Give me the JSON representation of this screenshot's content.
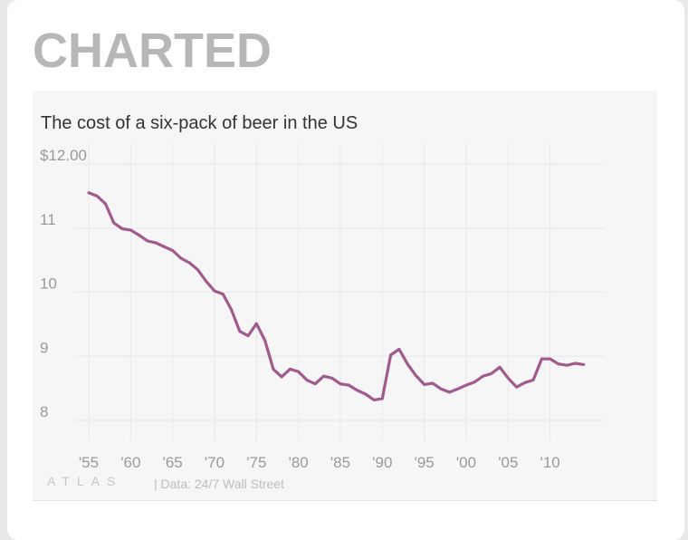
{
  "heading": "CHARTED",
  "footer": {
    "brand": "ATLAS",
    "source": "| Data: 24/7 Wall Street"
  },
  "colors": {
    "line": "#a05a8e",
    "heading": "#b7b7b7",
    "panel": "#f6f6f6",
    "grid": "#e7e7e7"
  },
  "chart_data": {
    "type": "line",
    "title": "The cost of a six-pack of beer in the US",
    "xlabel": "",
    "ylabel": "",
    "xlim": [
      1955,
      2015
    ],
    "ylim": [
      8,
      12
    ],
    "grid": true,
    "y_ticks": [
      {
        "value": 12,
        "label": "$12.00"
      },
      {
        "value": 11,
        "label": "11"
      },
      {
        "value": 10,
        "label": "10"
      },
      {
        "value": 9,
        "label": "9"
      },
      {
        "value": 8,
        "label": "8"
      }
    ],
    "x_ticks": [
      {
        "value": 1955,
        "label": "'55"
      },
      {
        "value": 1960,
        "label": "'60"
      },
      {
        "value": 1965,
        "label": "'65"
      },
      {
        "value": 1970,
        "label": "'70"
      },
      {
        "value": 1975,
        "label": "'75"
      },
      {
        "value": 1980,
        "label": "'80"
      },
      {
        "value": 1985,
        "label": "'85"
      },
      {
        "value": 1990,
        "label": "'90"
      },
      {
        "value": 1995,
        "label": "'95"
      },
      {
        "value": 2000,
        "label": "'00"
      },
      {
        "value": 2005,
        "label": "'05"
      },
      {
        "value": 2010,
        "label": "'10"
      }
    ],
    "series": [
      {
        "x": [
          1955,
          1956,
          1957,
          1958,
          1959,
          1960,
          1961,
          1962,
          1963,
          1964,
          1965,
          1966,
          1967,
          1968,
          1969,
          1970,
          1971,
          1972,
          1973,
          1974,
          1975,
          1976,
          1977,
          1978,
          1979,
          1980,
          1981,
          1982,
          1983,
          1984,
          1985,
          1986,
          1987,
          1988,
          1989,
          1990,
          1991,
          1992,
          1993,
          1994,
          1995,
          1996,
          1997,
          1998,
          1999,
          2000,
          2001,
          2002,
          2003,
          2004,
          2005,
          2006,
          2007,
          2008,
          2009,
          2010,
          2011,
          2012,
          2013,
          2014
        ],
        "values": [
          11.55,
          11.5,
          11.38,
          11.08,
          10.99,
          10.97,
          10.89,
          10.8,
          10.77,
          10.71,
          10.65,
          10.53,
          10.46,
          10.35,
          10.17,
          10.02,
          9.97,
          9.73,
          9.39,
          9.32,
          9.51,
          9.25,
          8.8,
          8.68,
          8.8,
          8.76,
          8.63,
          8.57,
          8.69,
          8.66,
          8.57,
          8.55,
          8.47,
          8.41,
          8.32,
          8.34,
          9.02,
          9.11,
          8.88,
          8.7,
          8.56,
          8.58,
          8.49,
          8.44,
          8.49,
          8.55,
          8.6,
          8.69,
          8.73,
          8.83,
          8.66,
          8.52,
          8.59,
          8.63,
          8.96,
          8.96,
          8.88,
          8.86,
          8.89,
          8.87
        ]
      }
    ]
  }
}
